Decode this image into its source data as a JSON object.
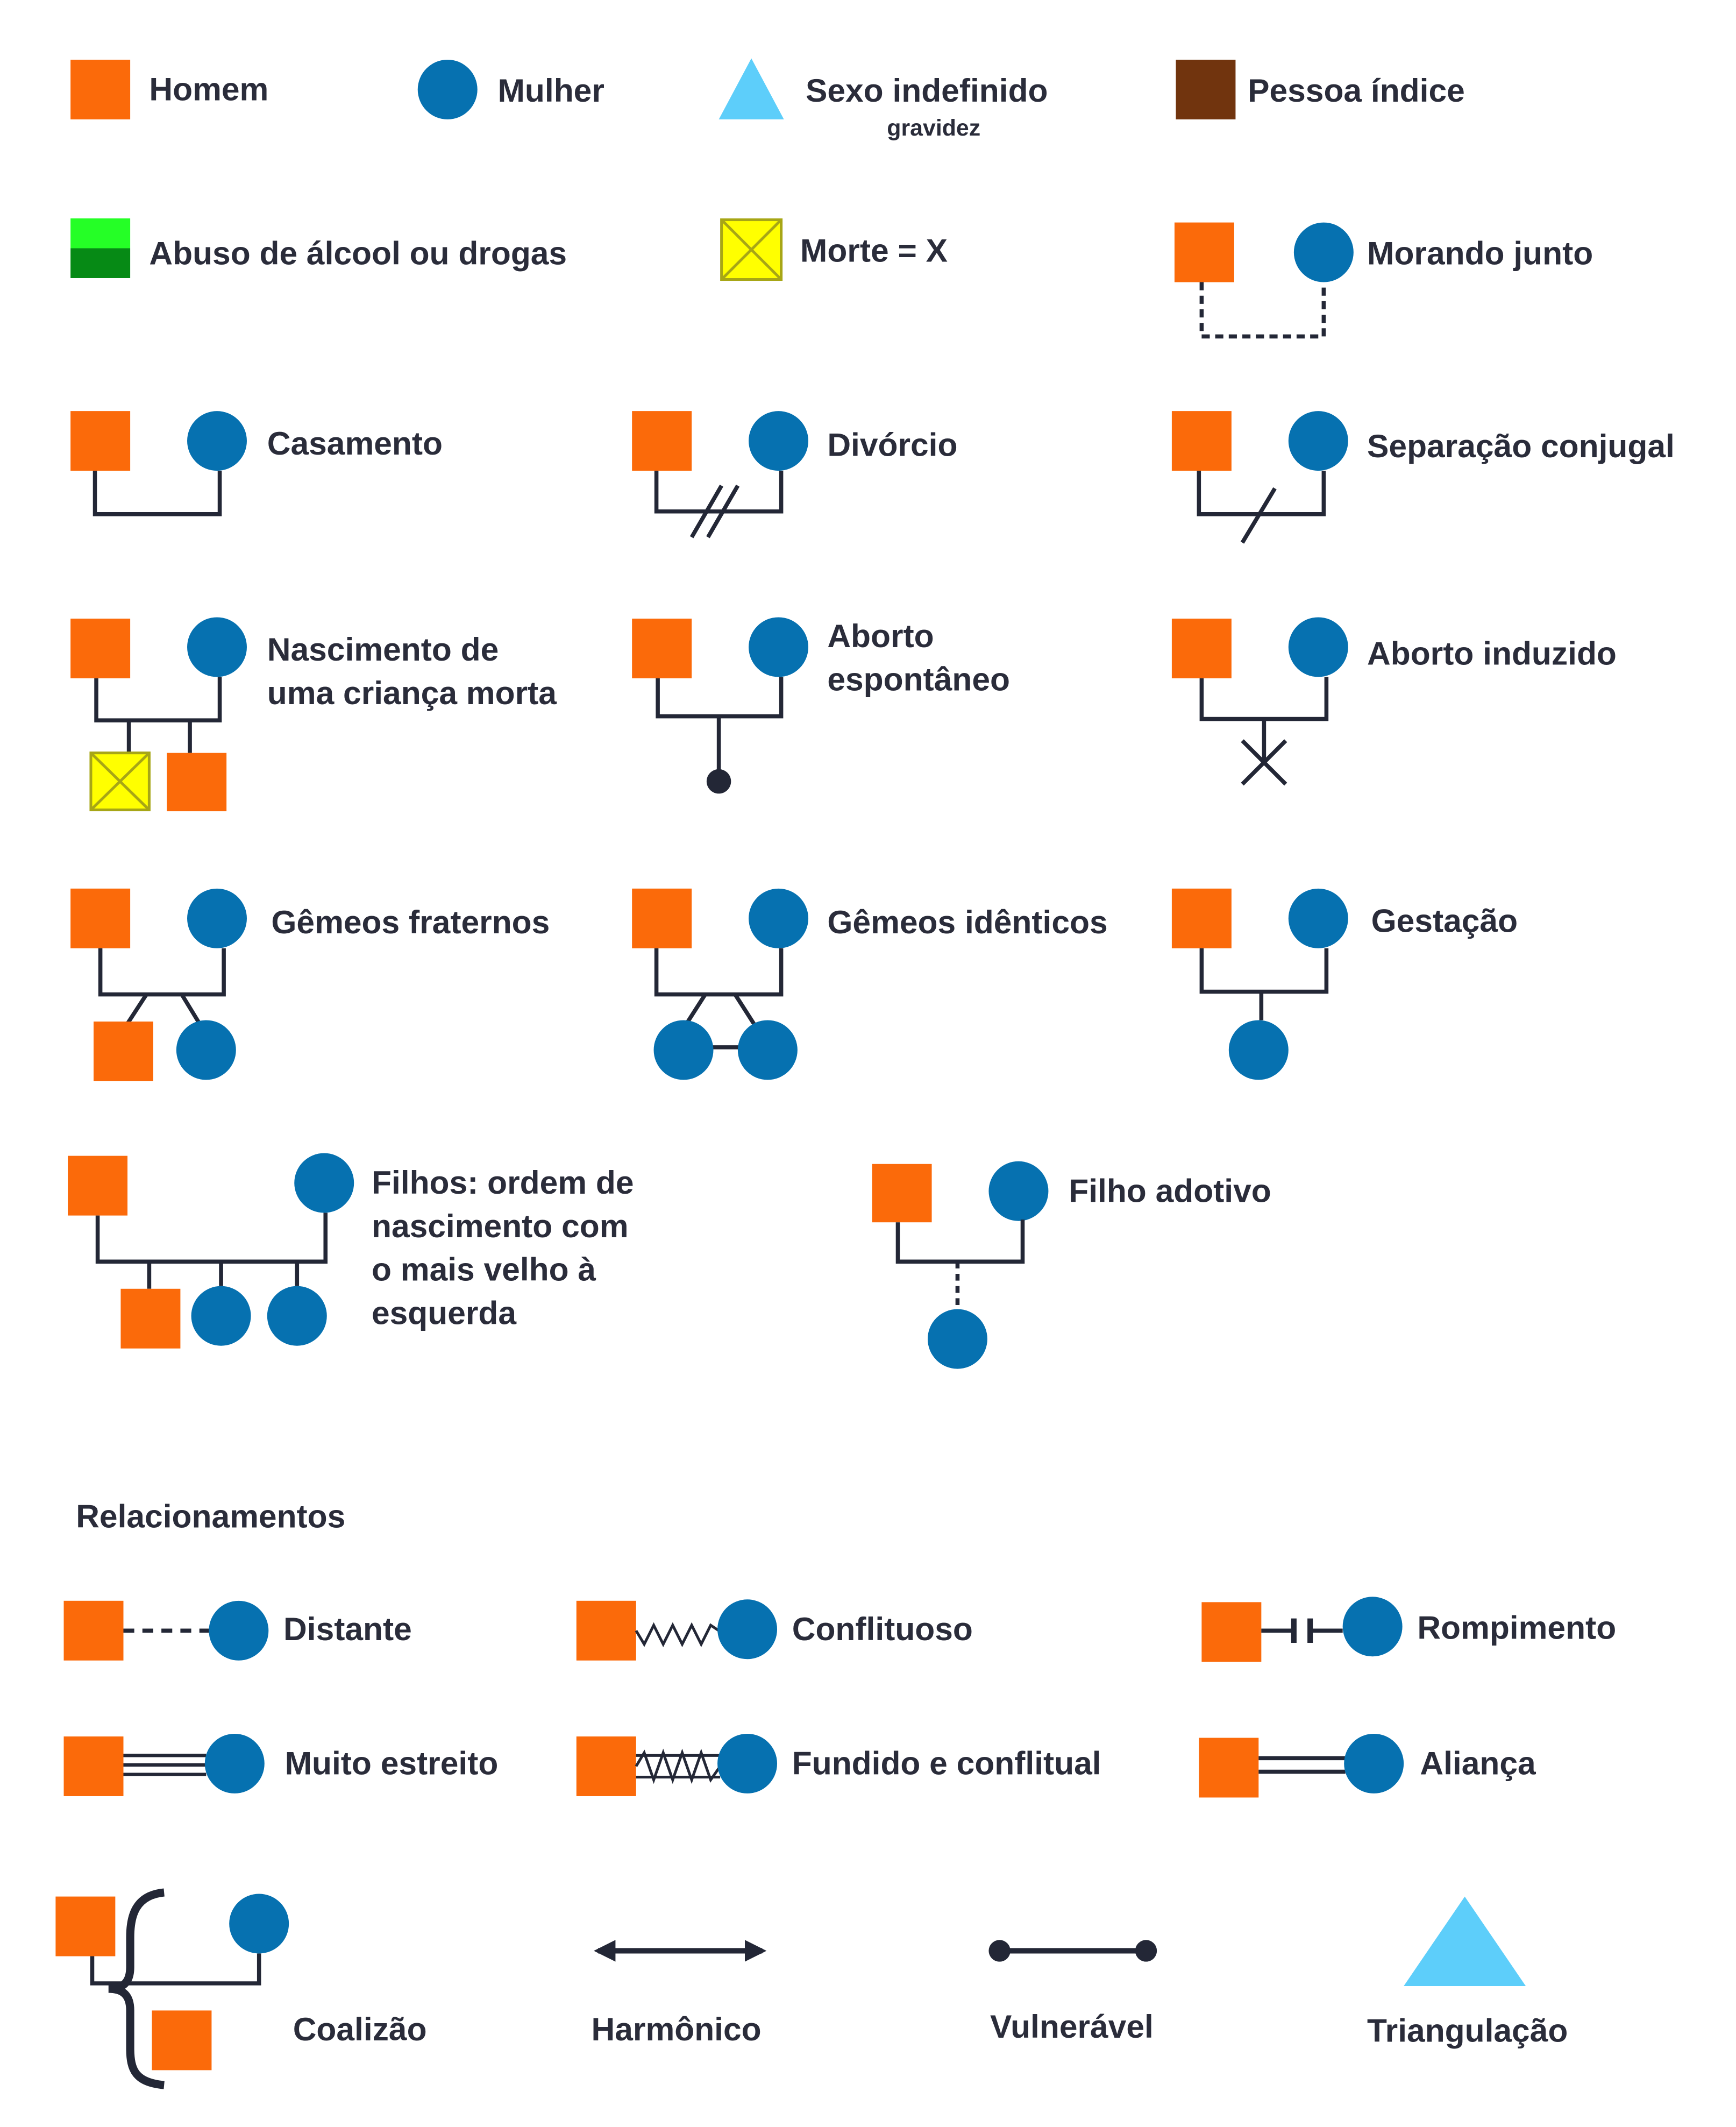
{
  "colors": {
    "male": "#fb6a0a",
    "female": "#0671b0",
    "undefined_sex": "#5dcefa",
    "index_person": "#71340e",
    "abuse_top": "#25ff26",
    "abuse_bottom": "#068a15",
    "death_fill": "#ffff00",
    "death_border": "#a7a616",
    "line": "#232736",
    "text": "#2a2c3a"
  },
  "legend": {
    "homem": "Homem",
    "mulher": "Mulher",
    "sexo_indefinido": "Sexo indefinido",
    "gravidez": "gravidez",
    "pessoa_indice": "Pessoa índice",
    "abuso": "Abuso de álcool ou drogas",
    "morte": "Morte = X",
    "morando_junto": "Morando junto",
    "casamento": "Casamento",
    "divorcio": "Divórcio",
    "separacao": "Separação conjugal",
    "nascimento_morta": [
      "Nascimento de",
      "uma criança morta"
    ],
    "aborto_espontaneo": [
      "Aborto",
      "espontâneo"
    ],
    "aborto_induzido": "Aborto induzido",
    "gemeos_fraternos": "Gêmeos fraternos",
    "gemeos_identicos": "Gêmeos idênticos",
    "gestacao": "Gestação",
    "filhos_ordem": [
      "Filhos: ordem de",
      "nascimento com",
      "o mais velho à",
      "esquerda"
    ],
    "filho_adotivo": "Filho adotivo"
  },
  "relationships": {
    "heading": "Relacionamentos",
    "distante": "Distante",
    "conflituoso": "Conflituoso",
    "rompimento": "Rompimento",
    "muito_estreito": "Muito estreito",
    "fundido_conflitual": "Fundido e conflitual",
    "alianca": "Aliança",
    "coalizao": "Coalizão",
    "harmonico": "Harmônico",
    "vulneravel": "Vulnerável",
    "triangulacao": "Triangulação"
  }
}
